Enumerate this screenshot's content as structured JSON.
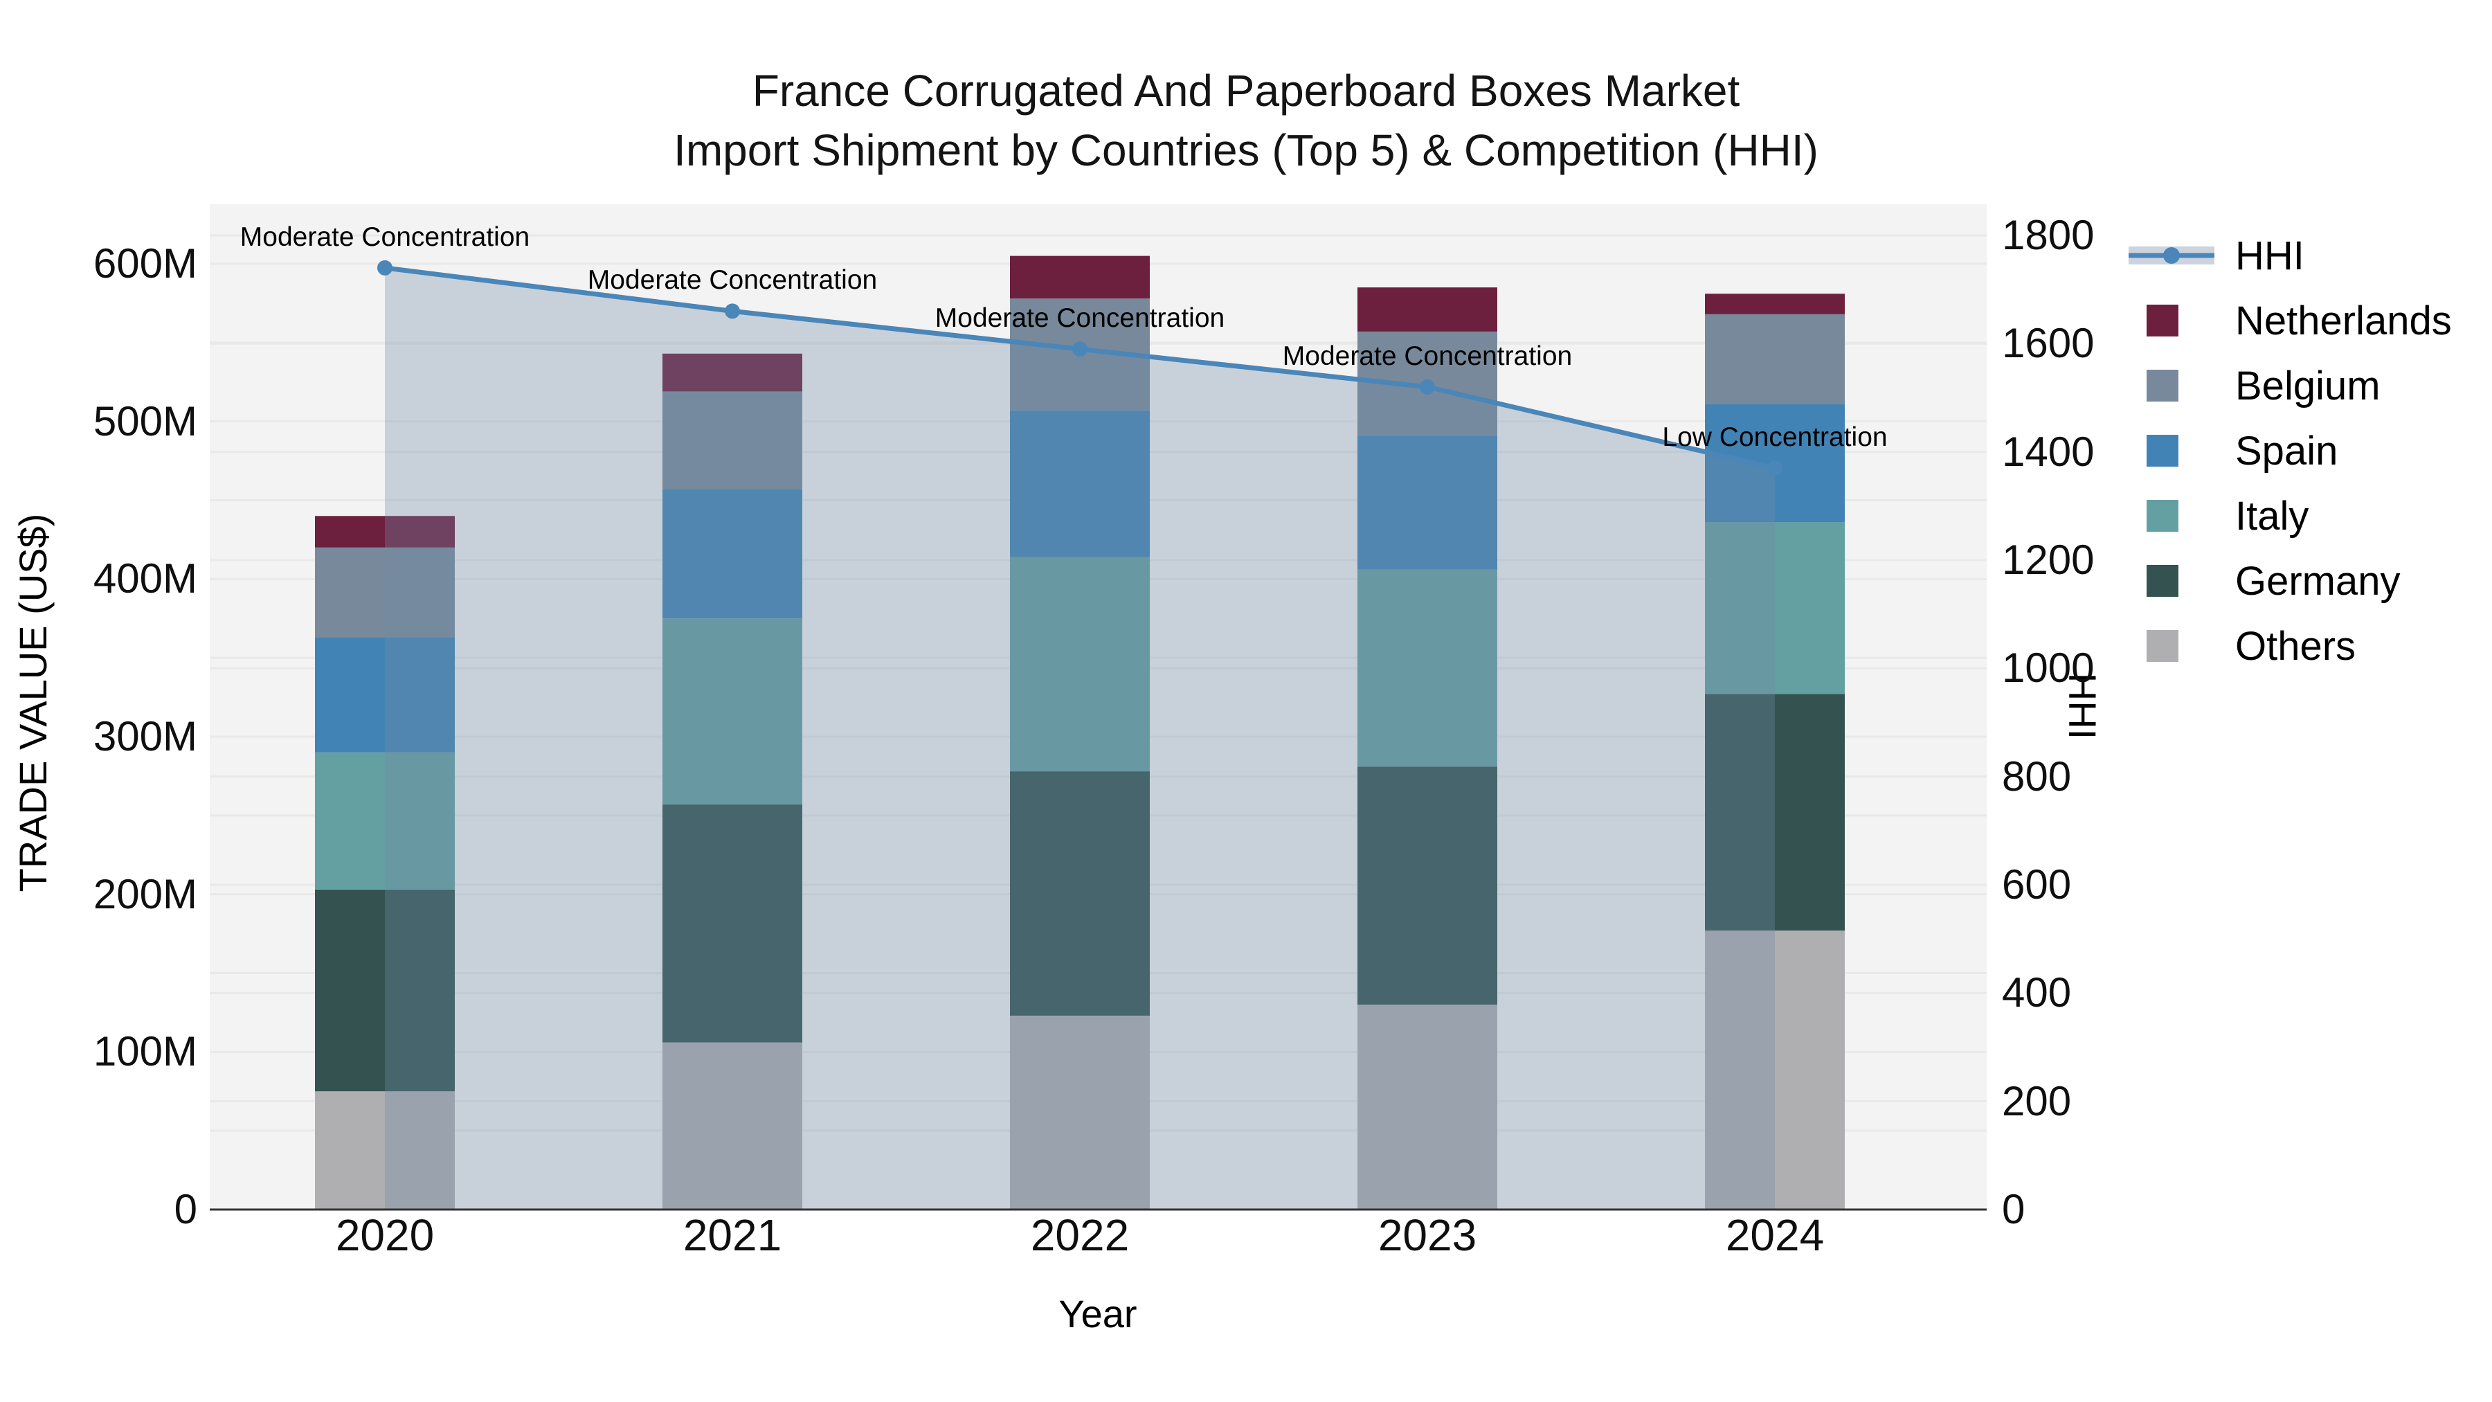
{
  "title": {
    "line1": "France Corrugated And Paperboard Boxes Market",
    "line2": "Import Shipment by Countries (Top 5) & Competition (HHI)"
  },
  "colors": {
    "plot_bg": "#F3F3F3",
    "grid": "#E9E9E9",
    "axis_line": "#333333",
    "hhi_line": "#4A86B8",
    "hhi_area": "#718BA7",
    "legend_hhi_band": "#CCD3DE"
  },
  "legend": {
    "items": [
      {
        "label": "HHI",
        "type": "line",
        "color": "#4A86B8"
      },
      {
        "label": "Netherlands",
        "type": "swatch",
        "color": "#6D1F3E"
      },
      {
        "label": "Belgium",
        "type": "swatch",
        "color": "#78899B"
      },
      {
        "label": "Spain",
        "type": "swatch",
        "color": "#4183B4"
      },
      {
        "label": "Italy",
        "type": "swatch",
        "color": "#64A0A2"
      },
      {
        "label": "Germany",
        "type": "swatch",
        "color": "#335250"
      },
      {
        "label": "Others",
        "type": "swatch",
        "color": "#AFAFB1"
      }
    ]
  },
  "chart_data": {
    "type": "stacked-bar + line combo",
    "x_label": "Year",
    "categories": [
      "2020",
      "2021",
      "2022",
      "2023",
      "2024"
    ],
    "value_unit": "millions US$",
    "stacked_series_bottom_to_top": [
      {
        "name": "Others",
        "color": "#AFAFB1",
        "values": [
          75,
          106,
          123,
          130,
          177
        ]
      },
      {
        "name": "Germany",
        "color": "#335250",
        "values": [
          128,
          151,
          155,
          151,
          150
        ]
      },
      {
        "name": "Italy",
        "color": "#64A0A2",
        "values": [
          87,
          118,
          136,
          125,
          109
        ]
      },
      {
        "name": "Spain",
        "color": "#4183B4",
        "values": [
          73,
          82,
          93,
          85,
          75
        ]
      },
      {
        "name": "Belgium",
        "color": "#78899B",
        "values": [
          57,
          62,
          71,
          66,
          57
        ]
      },
      {
        "name": "Netherlands",
        "color": "#6D1F3E",
        "values": [
          20,
          24,
          27,
          28,
          13
        ]
      }
    ],
    "bar_totals_millions": [
      440,
      543,
      605,
      585,
      581
    ],
    "line_series": {
      "name": "HHI",
      "color": "#4A86B8",
      "area_fill": "#718BA7",
      "area_opacity": 0.33,
      "values": [
        1740,
        1660,
        1590,
        1520,
        1370
      ]
    },
    "annotations": [
      "Moderate Concentration",
      "Moderate Concentration",
      "Moderate Concentration",
      "Moderate Concentration",
      "Low Concentration"
    ],
    "left_axis": {
      "label": "TRADE VALUE (US$)",
      "tick_values": [
        0,
        100,
        200,
        300,
        400,
        500,
        600
      ],
      "tick_labels": [
        "0",
        "100M",
        "200M",
        "300M",
        "400M",
        "500M",
        "600M"
      ],
      "minor_grid_step": 50,
      "range": [
        0,
        638
      ]
    },
    "right_axis": {
      "label": "HHI",
      "tick_values": [
        0,
        200,
        400,
        600,
        800,
        1000,
        1200,
        1400,
        1600,
        1800
      ],
      "tick_labels": [
        "0",
        "200",
        "400",
        "600",
        "800",
        "1000",
        "1200",
        "1400",
        "1600",
        "1800"
      ],
      "range": [
        0,
        1860
      ]
    },
    "legend_position": "right",
    "grid": true
  }
}
